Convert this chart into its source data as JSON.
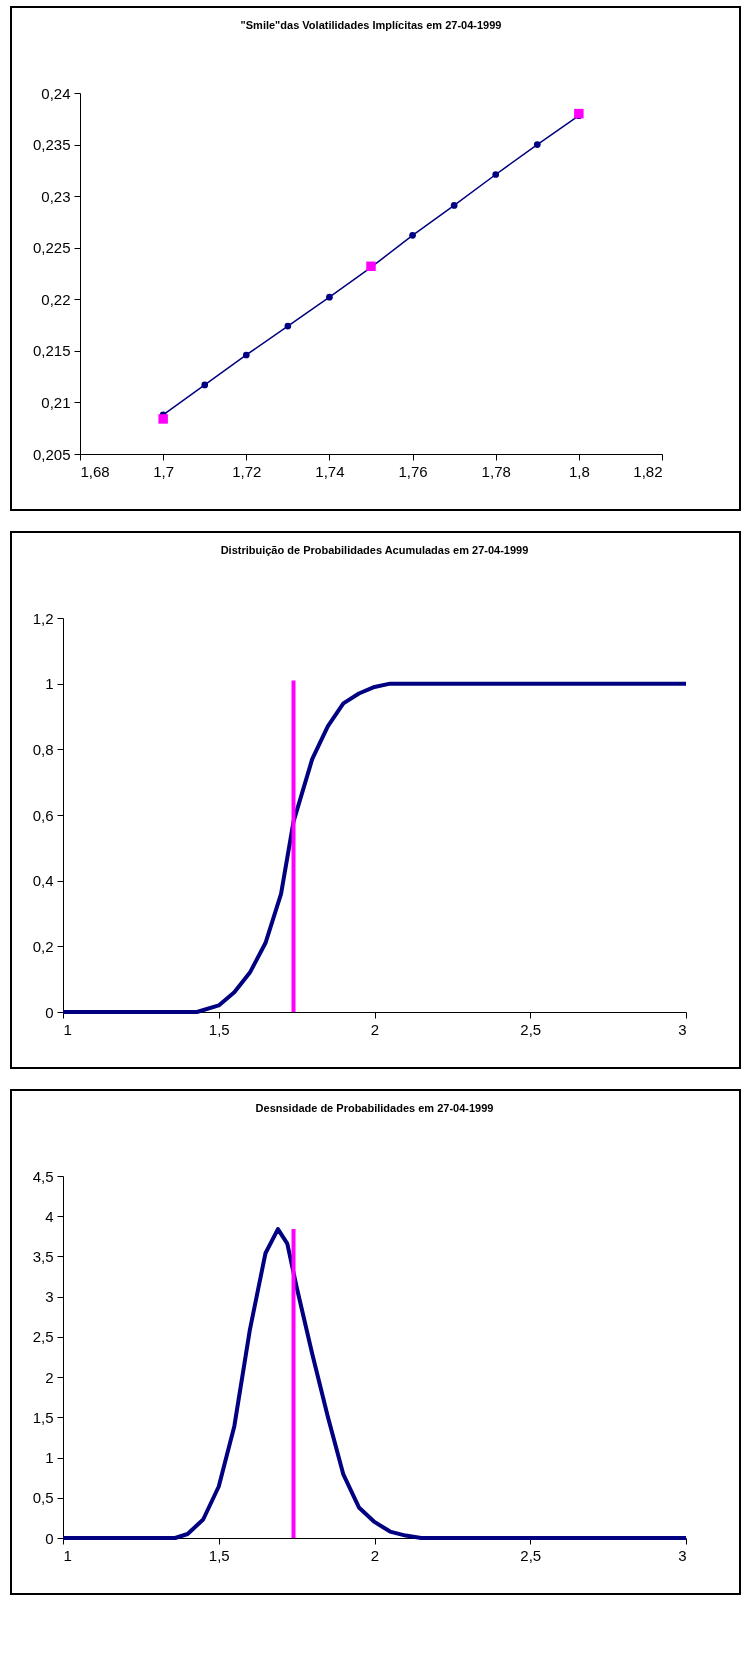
{
  "chart_data": [
    {
      "type": "line",
      "title": "\"Smile\"das Volatilidades Implícitas em 27-04-1999",
      "xlim": [
        1.68,
        1.82
      ],
      "xticks": [
        {
          "value": 1.68,
          "label": "1,68"
        },
        {
          "value": 1.7,
          "label": "1,7"
        },
        {
          "value": 1.72,
          "label": "1,72"
        },
        {
          "value": 1.74,
          "label": "1,74"
        },
        {
          "value": 1.76,
          "label": "1,76"
        },
        {
          "value": 1.78,
          "label": "1,78"
        },
        {
          "value": 1.8,
          "label": "1,8"
        },
        {
          "value": 1.82,
          "label": "1,82"
        }
      ],
      "ylim": [
        0.205,
        0.24
      ],
      "yticks": [
        {
          "value": 0.205,
          "label": "0,205"
        },
        {
          "value": 0.21,
          "label": "0,21"
        },
        {
          "value": 0.215,
          "label": "0,215"
        },
        {
          "value": 0.22,
          "label": "0,22"
        },
        {
          "value": 0.225,
          "label": "0,225"
        },
        {
          "value": 0.23,
          "label": "0,23"
        },
        {
          "value": 0.235,
          "label": "0,235"
        },
        {
          "value": 0.24,
          "label": "0,24"
        }
      ],
      "grid": false,
      "series": [
        {
          "type": "line",
          "marker": "circle",
          "color": "#000080",
          "x": [
            1.7,
            1.71,
            1.72,
            1.73,
            1.74,
            1.75,
            1.76,
            1.77,
            1.78,
            1.79,
            1.8
          ],
          "values": [
            0.2088,
            0.2117,
            0.2146,
            0.2174,
            0.2202,
            0.2231,
            0.2262,
            0.2291,
            0.2321,
            0.235,
            0.2378
          ]
        },
        {
          "type": "scatter",
          "marker": "square",
          "color": "#ff00ff",
          "x": [
            1.7,
            1.75,
            1.8
          ],
          "values": [
            0.2084,
            0.2232,
            0.238
          ]
        }
      ]
    },
    {
      "type": "line",
      "title": "Distribuição de Probabilidades Acumuladas em 27-04-1999",
      "xlim": [
        1,
        3
      ],
      "xticks": [
        1,
        {
          "value": 1.5,
          "label": "1,5"
        },
        2,
        {
          "value": 2.5,
          "label": "2,5"
        },
        3
      ],
      "ylim": [
        0,
        1.2
      ],
      "yticks": [
        0,
        {
          "value": 0.2,
          "label": "0,2"
        },
        {
          "value": 0.4,
          "label": "0,4"
        },
        {
          "value": 0.6,
          "label": "0,6"
        },
        {
          "value": 0.8,
          "label": "0,8"
        },
        1,
        {
          "value": 1.2,
          "label": "1,2"
        }
      ],
      "grid": false,
      "series": [
        {
          "type": "line",
          "marker": "none",
          "color": "#000080",
          "x": [
            1,
            1.2,
            1.43,
            1.5,
            1.55,
            1.6,
            1.65,
            1.7,
            1.74,
            1.8,
            1.85,
            1.9,
            1.95,
            2,
            2.05,
            2.1,
            2.5,
            3
          ],
          "values": [
            0,
            0,
            0,
            0.02,
            0.06,
            0.12,
            0.21,
            0.36,
            0.58,
            0.77,
            0.87,
            0.94,
            0.97,
            0.99,
            1,
            1,
            1,
            1
          ]
        },
        {
          "type": "line",
          "marker": "none",
          "color": "#ff00ff",
          "x": [
            1.74,
            1.74
          ],
          "values": [
            0,
            1.01
          ]
        }
      ]
    },
    {
      "type": "line",
      "title": "Desnsidade de Probabilidades em 27-04-1999",
      "xlim": [
        1,
        3
      ],
      "xticks": [
        1,
        {
          "value": 1.5,
          "label": "1,5"
        },
        2,
        {
          "value": 2.5,
          "label": "2,5"
        },
        3
      ],
      "ylim": [
        0,
        4.5
      ],
      "yticks": [
        0,
        {
          "value": 0.5,
          "label": "0,5"
        },
        1,
        {
          "value": 1.5,
          "label": "1,5"
        },
        2,
        {
          "value": 2.5,
          "label": "2,5"
        },
        3,
        {
          "value": 3.5,
          "label": "3,5"
        },
        4,
        {
          "value": 4.5,
          "label": "4,5"
        }
      ],
      "grid": false,
      "series": [
        {
          "type": "line",
          "marker": "none",
          "color": "#000080",
          "x": [
            1,
            1.2,
            1.36,
            1.4,
            1.45,
            1.5,
            1.55,
            1.6,
            1.65,
            1.69,
            1.72,
            1.75,
            1.8,
            1.85,
            1.9,
            1.95,
            2,
            2.05,
            2.1,
            2.15,
            2.5,
            3
          ],
          "values": [
            0,
            0,
            0,
            0.05,
            0.23,
            0.64,
            1.39,
            2.59,
            3.54,
            3.84,
            3.66,
            3.12,
            2.29,
            1.51,
            0.79,
            0.38,
            0.2,
            0.08,
            0.03,
            0,
            0,
            0
          ]
        },
        {
          "type": "line",
          "marker": "none",
          "color": "#ff00ff",
          "x": [
            1.74,
            1.74
          ],
          "values": [
            0,
            3.84
          ]
        }
      ]
    }
  ]
}
